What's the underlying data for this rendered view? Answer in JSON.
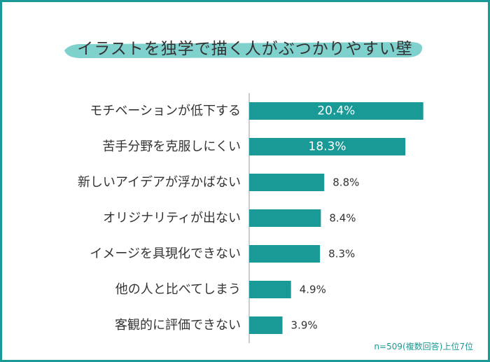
{
  "title": "イラストを独学で描く人がぶつかりやすい壁",
  "footnote": "n=509(複数回答)上位7位",
  "colors": {
    "bar": "#1a9a96",
    "ribbon": "#7fd1cd",
    "border": "#1a9a96",
    "label": "#333333",
    "axis": "#999999"
  },
  "chart_data": {
    "type": "bar",
    "orientation": "horizontal",
    "unit": "%",
    "categories": [
      "モチベーションが低下する",
      "苦手分野を克服しにくい",
      "新しいアイデアが浮かばない",
      "オリジナリティが出ない",
      "イメージを具現化できない",
      "他の人と比べてしまう",
      "客観的に評価できない"
    ],
    "values": [
      20.4,
      18.3,
      8.8,
      8.4,
      8.3,
      4.9,
      3.9
    ],
    "value_labels": [
      "20.4%",
      "18.3%",
      "8.8%",
      "8.4%",
      "8.3%",
      "4.9%",
      "3.9%"
    ],
    "xlim": [
      0,
      21
    ]
  }
}
